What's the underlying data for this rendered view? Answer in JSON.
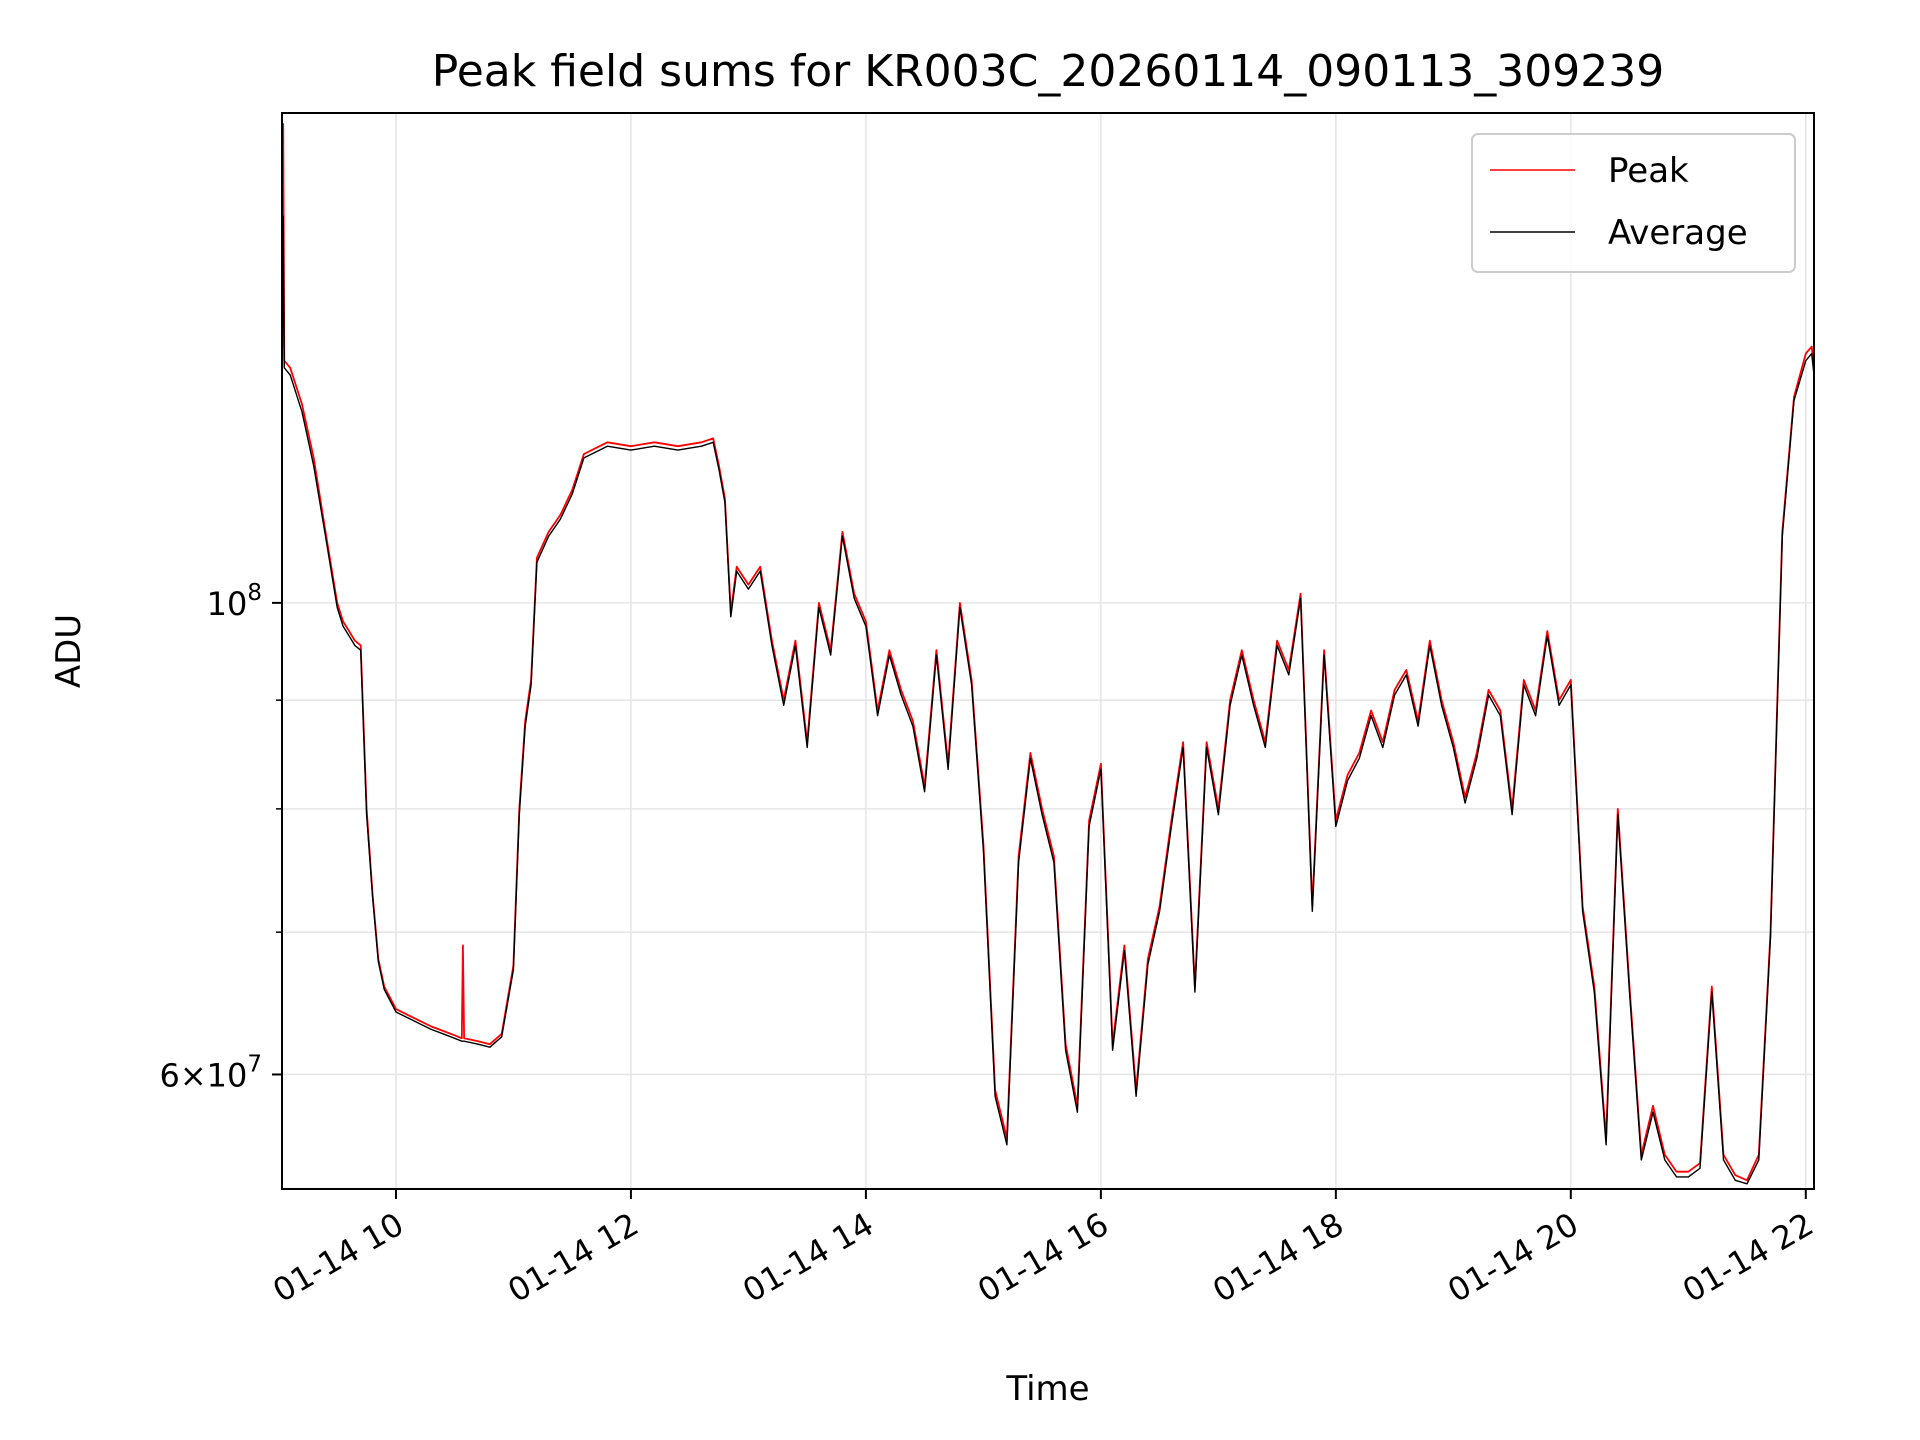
{
  "chart_data": {
    "type": "line",
    "title": "Peak field sums for KR003C_20260114_090113_309239",
    "xlabel": "Time",
    "ylabel": "ADU",
    "yscale": "log",
    "xlim": [
      9.03,
      22.07
    ],
    "ylim": [
      53000000,
      170000000
    ],
    "grid": true,
    "legend_position": "top-right",
    "x_unit": "hours on 2026-01-14",
    "x_ticks": [
      {
        "value": 10,
        "label": "01-14 10"
      },
      {
        "value": 12,
        "label": "01-14 12"
      },
      {
        "value": 14,
        "label": "01-14 14"
      },
      {
        "value": 16,
        "label": "01-14 16"
      },
      {
        "value": 18,
        "label": "01-14 18"
      },
      {
        "value": 20,
        "label": "01-14 20"
      },
      {
        "value": 22,
        "label": "01-14 22"
      }
    ],
    "y_major_ticks": [
      {
        "value": 60000000,
        "mantissa": "6",
        "exponent": "7"
      },
      {
        "value": 100000000,
        "mantissa": "",
        "exponent": "8"
      }
    ],
    "y_minor_grid": [
      70000000,
      80000000,
      90000000
    ],
    "x_grid": [
      10,
      12,
      14,
      16,
      18,
      20,
      22
    ],
    "series": [
      {
        "name": "Peak",
        "color": "#ff0000",
        "points": [
          [
            9.03,
            124000000
          ],
          [
            9.04,
            168000000
          ],
          [
            9.05,
            130000000
          ],
          [
            9.1,
            129000000
          ],
          [
            9.2,
            124000000
          ],
          [
            9.3,
            117000000
          ],
          [
            9.4,
            108000000
          ],
          [
            9.5,
            100000000
          ],
          [
            9.55,
            98000000
          ],
          [
            9.6,
            97000000
          ],
          [
            9.65,
            96000000
          ],
          [
            9.7,
            95500000
          ],
          [
            9.75,
            80000000
          ],
          [
            9.8,
            73000000
          ],
          [
            9.85,
            68000000
          ],
          [
            9.9,
            66000000
          ],
          [
            10.0,
            64400000
          ],
          [
            10.1,
            64000000
          ],
          [
            10.2,
            63600000
          ],
          [
            10.3,
            63200000
          ],
          [
            10.4,
            62900000
          ],
          [
            10.5,
            62600000
          ],
          [
            10.56,
            62400000
          ],
          [
            10.57,
            69000000
          ],
          [
            10.58,
            62400000
          ],
          [
            10.7,
            62200000
          ],
          [
            10.8,
            62000000
          ],
          [
            10.9,
            62700000
          ],
          [
            11.0,
            67500000
          ],
          [
            11.05,
            80000000
          ],
          [
            11.1,
            88000000
          ],
          [
            11.15,
            92000000
          ],
          [
            11.2,
            105000000
          ],
          [
            11.3,
            108000000
          ],
          [
            11.4,
            110000000
          ],
          [
            11.5,
            113000000
          ],
          [
            11.6,
            117500000
          ],
          [
            11.8,
            119000000
          ],
          [
            12.0,
            118500000
          ],
          [
            12.2,
            119000000
          ],
          [
            12.4,
            118500000
          ],
          [
            12.6,
            119000000
          ],
          [
            12.7,
            119500000
          ],
          [
            12.75,
            116000000
          ],
          [
            12.8,
            112000000
          ],
          [
            12.85,
            99000000
          ],
          [
            12.9,
            104000000
          ],
          [
            13.0,
            102000000
          ],
          [
            13.1,
            104000000
          ],
          [
            13.2,
            96000000
          ],
          [
            13.3,
            90000000
          ],
          [
            13.4,
            96000000
          ],
          [
            13.5,
            86000000
          ],
          [
            13.6,
            100000000
          ],
          [
            13.7,
            95000000
          ],
          [
            13.8,
            108000000
          ],
          [
            13.9,
            101000000
          ],
          [
            14.0,
            98000000
          ],
          [
            14.1,
            89000000
          ],
          [
            14.2,
            95000000
          ],
          [
            14.3,
            91000000
          ],
          [
            14.4,
            88000000
          ],
          [
            14.5,
            82000000
          ],
          [
            14.6,
            95000000
          ],
          [
            14.7,
            84000000
          ],
          [
            14.8,
            100000000
          ],
          [
            14.9,
            92000000
          ],
          [
            15.0,
            77000000
          ],
          [
            15.1,
            59000000
          ],
          [
            15.2,
            56000000
          ],
          [
            15.3,
            76000000
          ],
          [
            15.4,
            85000000
          ],
          [
            15.5,
            80000000
          ],
          [
            15.6,
            76000000
          ],
          [
            15.7,
            62000000
          ],
          [
            15.8,
            58000000
          ],
          [
            15.9,
            79000000
          ],
          [
            16.0,
            84000000
          ],
          [
            16.1,
            62000000
          ],
          [
            16.2,
            69000000
          ],
          [
            16.3,
            59000000
          ],
          [
            16.4,
            68000000
          ],
          [
            16.5,
            72000000
          ],
          [
            16.6,
            79000000
          ],
          [
            16.7,
            86000000
          ],
          [
            16.8,
            66000000
          ],
          [
            16.9,
            86000000
          ],
          [
            17.0,
            80000000
          ],
          [
            17.1,
            90000000
          ],
          [
            17.2,
            95000000
          ],
          [
            17.3,
            90000000
          ],
          [
            17.4,
            86000000
          ],
          [
            17.5,
            96000000
          ],
          [
            17.6,
            93000000
          ],
          [
            17.7,
            101000000
          ],
          [
            17.8,
            72000000
          ],
          [
            17.9,
            95000000
          ],
          [
            18.0,
            79000000
          ],
          [
            18.1,
            83000000
          ],
          [
            18.2,
            85000000
          ],
          [
            18.3,
            89000000
          ],
          [
            18.4,
            86000000
          ],
          [
            18.5,
            91000000
          ],
          [
            18.6,
            93000000
          ],
          [
            18.7,
            88000000
          ],
          [
            18.8,
            96000000
          ],
          [
            18.9,
            90000000
          ],
          [
            19.0,
            86000000
          ],
          [
            19.1,
            81000000
          ],
          [
            19.2,
            85000000
          ],
          [
            19.3,
            91000000
          ],
          [
            19.4,
            89000000
          ],
          [
            19.5,
            80000000
          ],
          [
            19.6,
            92000000
          ],
          [
            19.7,
            89000000
          ],
          [
            19.8,
            97000000
          ],
          [
            19.9,
            90000000
          ],
          [
            20.0,
            92000000
          ],
          [
            20.1,
            72000000
          ],
          [
            20.2,
            66000000
          ],
          [
            20.3,
            56000000
          ],
          [
            20.4,
            80000000
          ],
          [
            20.5,
            66000000
          ],
          [
            20.6,
            55000000
          ],
          [
            20.7,
            58000000
          ],
          [
            20.8,
            55000000
          ],
          [
            20.9,
            54000000
          ],
          [
            21.0,
            54000000
          ],
          [
            21.1,
            54500000
          ],
          [
            21.2,
            66000000
          ],
          [
            21.3,
            55000000
          ],
          [
            21.4,
            53800000
          ],
          [
            21.5,
            53500000
          ],
          [
            21.6,
            55000000
          ],
          [
            21.7,
            70000000
          ],
          [
            21.8,
            108000000
          ],
          [
            21.9,
            125000000
          ],
          [
            22.0,
            131000000
          ],
          [
            22.05,
            132000000
          ],
          [
            22.07,
            129000000
          ]
        ]
      },
      {
        "name": "Average",
        "color": "#000000",
        "points": [
          [
            9.03,
            124000000
          ],
          [
            9.04,
            152000000
          ],
          [
            9.05,
            129000000
          ],
          [
            9.1,
            128000000
          ],
          [
            9.2,
            123000000
          ],
          [
            9.3,
            116000000
          ],
          [
            9.4,
            107500000
          ],
          [
            9.5,
            99500000
          ],
          [
            9.55,
            97500000
          ],
          [
            9.6,
            96500000
          ],
          [
            9.65,
            95500000
          ],
          [
            9.7,
            95000000
          ],
          [
            9.75,
            79500000
          ],
          [
            9.8,
            72800000
          ],
          [
            9.85,
            67800000
          ],
          [
            9.9,
            65800000
          ],
          [
            10.0,
            64200000
          ],
          [
            10.1,
            63800000
          ],
          [
            10.2,
            63400000
          ],
          [
            10.3,
            63000000
          ],
          [
            10.4,
            62700000
          ],
          [
            10.5,
            62400000
          ],
          [
            10.56,
            62200000
          ],
          [
            10.57,
            62200000
          ],
          [
            10.58,
            62200000
          ],
          [
            10.7,
            62000000
          ],
          [
            10.8,
            61800000
          ],
          [
            10.9,
            62500000
          ],
          [
            11.0,
            67200000
          ],
          [
            11.05,
            79500000
          ],
          [
            11.1,
            87500000
          ],
          [
            11.15,
            91500000
          ],
          [
            11.2,
            104500000
          ],
          [
            11.3,
            107500000
          ],
          [
            11.4,
            109500000
          ],
          [
            11.5,
            112500000
          ],
          [
            11.6,
            117000000
          ],
          [
            11.8,
            118500000
          ],
          [
            12.0,
            118000000
          ],
          [
            12.2,
            118500000
          ],
          [
            12.4,
            118000000
          ],
          [
            12.6,
            118500000
          ],
          [
            12.7,
            119000000
          ],
          [
            12.75,
            115500000
          ],
          [
            12.8,
            111500000
          ],
          [
            12.85,
            98500000
          ],
          [
            12.9,
            103500000
          ],
          [
            13.0,
            101500000
          ],
          [
            13.1,
            103500000
          ],
          [
            13.2,
            95500000
          ],
          [
            13.3,
            89500000
          ],
          [
            13.4,
            95500000
          ],
          [
            13.5,
            85500000
          ],
          [
            13.6,
            99500000
          ],
          [
            13.7,
            94500000
          ],
          [
            13.8,
            107500000
          ],
          [
            13.9,
            100500000
          ],
          [
            14.0,
            97500000
          ],
          [
            14.1,
            88500000
          ],
          [
            14.2,
            94500000
          ],
          [
            14.3,
            90500000
          ],
          [
            14.4,
            87500000
          ],
          [
            14.5,
            81500000
          ],
          [
            14.6,
            94500000
          ],
          [
            14.7,
            83500000
          ],
          [
            14.8,
            99500000
          ],
          [
            14.9,
            91500000
          ],
          [
            15.0,
            76500000
          ],
          [
            15.1,
            58600000
          ],
          [
            15.2,
            55600000
          ],
          [
            15.3,
            75500000
          ],
          [
            15.4,
            84500000
          ],
          [
            15.5,
            79500000
          ],
          [
            15.6,
            75500000
          ],
          [
            15.7,
            61600000
          ],
          [
            15.8,
            57600000
          ],
          [
            15.9,
            78500000
          ],
          [
            16.0,
            83500000
          ],
          [
            16.1,
            61600000
          ],
          [
            16.2,
            68600000
          ],
          [
            16.3,
            58600000
          ],
          [
            16.4,
            67600000
          ],
          [
            16.5,
            71600000
          ],
          [
            16.6,
            78500000
          ],
          [
            16.7,
            85500000
          ],
          [
            16.8,
            65600000
          ],
          [
            16.9,
            85500000
          ],
          [
            17.0,
            79500000
          ],
          [
            17.1,
            89500000
          ],
          [
            17.2,
            94500000
          ],
          [
            17.3,
            89500000
          ],
          [
            17.4,
            85500000
          ],
          [
            17.5,
            95500000
          ],
          [
            17.6,
            92500000
          ],
          [
            17.7,
            100500000
          ],
          [
            17.8,
            71600000
          ],
          [
            17.9,
            94500000
          ],
          [
            18.0,
            78500000
          ],
          [
            18.1,
            82500000
          ],
          [
            18.2,
            84500000
          ],
          [
            18.3,
            88500000
          ],
          [
            18.4,
            85500000
          ],
          [
            18.5,
            90500000
          ],
          [
            18.6,
            92500000
          ],
          [
            18.7,
            87500000
          ],
          [
            18.8,
            95500000
          ],
          [
            18.9,
            89500000
          ],
          [
            19.0,
            85500000
          ],
          [
            19.1,
            80500000
          ],
          [
            19.2,
            84500000
          ],
          [
            19.3,
            90500000
          ],
          [
            19.4,
            88500000
          ],
          [
            19.5,
            79500000
          ],
          [
            19.6,
            91500000
          ],
          [
            19.7,
            88500000
          ],
          [
            19.8,
            96500000
          ],
          [
            19.9,
            89500000
          ],
          [
            20.0,
            91500000
          ],
          [
            20.1,
            71600000
          ],
          [
            20.2,
            65600000
          ],
          [
            20.3,
            55600000
          ],
          [
            20.4,
            79500000
          ],
          [
            20.5,
            65600000
          ],
          [
            20.6,
            54700000
          ],
          [
            20.7,
            57600000
          ],
          [
            20.8,
            54700000
          ],
          [
            20.9,
            53700000
          ],
          [
            21.0,
            53700000
          ],
          [
            21.1,
            54200000
          ],
          [
            21.2,
            65600000
          ],
          [
            21.3,
            54700000
          ],
          [
            21.4,
            53500000
          ],
          [
            21.5,
            53300000
          ],
          [
            21.6,
            54700000
          ],
          [
            21.7,
            69600000
          ],
          [
            21.8,
            107500000
          ],
          [
            21.9,
            124500000
          ],
          [
            22.0,
            130000000
          ],
          [
            22.05,
            131000000
          ],
          [
            22.07,
            128000000
          ]
        ]
      }
    ]
  }
}
